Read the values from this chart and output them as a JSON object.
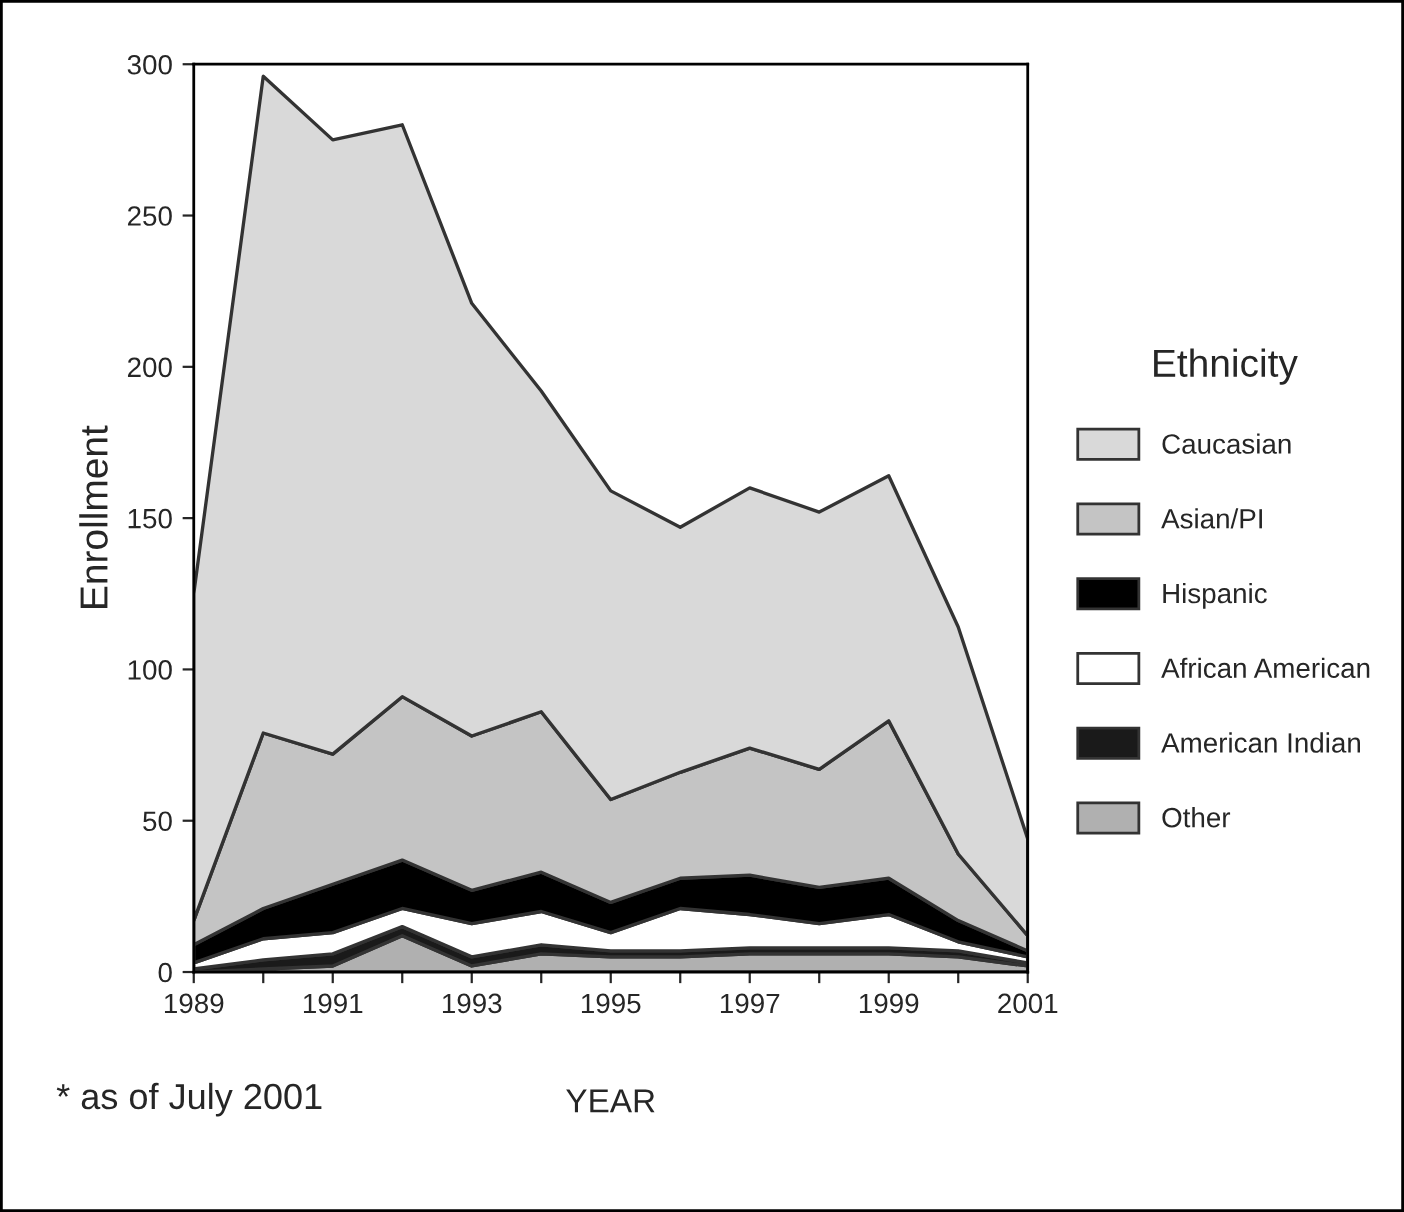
{
  "chart_data": {
    "type": "area",
    "stacked": true,
    "xlabel": "YEAR",
    "ylabel": "Enrollment",
    "legend_title": "Ethnicity",
    "legend": "right",
    "x": [
      1989,
      1990,
      1991,
      1992,
      1993,
      1994,
      1995,
      1996,
      1997,
      1998,
      1999,
      2000,
      2001
    ],
    "series": [
      {
        "name": "Other",
        "color": "#b0b0b0",
        "values": [
          0,
          1,
          2,
          12,
          2,
          6,
          5,
          5,
          6,
          6,
          6,
          5,
          2
        ]
      },
      {
        "name": "American Indian",
        "color": "#1a1a1a",
        "values": [
          1,
          3,
          4,
          3,
          3,
          3,
          2,
          2,
          2,
          2,
          2,
          2,
          1
        ]
      },
      {
        "name": "African American",
        "color": "#ffffff",
        "values": [
          2,
          7,
          7,
          6,
          11,
          11,
          6,
          14,
          11,
          8,
          11,
          3,
          2
        ]
      },
      {
        "name": "Hispanic",
        "color": "#000000",
        "values": [
          6,
          10,
          16,
          16,
          11,
          13,
          10,
          10,
          13,
          12,
          12,
          7,
          2
        ]
      },
      {
        "name": "Asian/PI",
        "color": "#c4c4c4",
        "values": [
          8,
          58,
          43,
          54,
          51,
          53,
          34,
          35,
          42,
          39,
          52,
          22,
          5
        ]
      },
      {
        "name": "Caucasian",
        "color": "#d9d9d9",
        "values": [
          108,
          217,
          203,
          189,
          143,
          106,
          102,
          81,
          86,
          85,
          81,
          75,
          32
        ]
      }
    ],
    "xlim": [
      1989,
      2001
    ],
    "xticks": [
      1989,
      {
        "value": 1990,
        "label": null
      },
      1991,
      {
        "value": 1992,
        "label": null
      },
      1993,
      {
        "value": 1994,
        "label": null
      },
      1995,
      {
        "value": 1996,
        "label": null
      },
      1997,
      {
        "value": 1998,
        "label": null
      },
      1999,
      {
        "value": 2000,
        "label": null
      },
      2001
    ],
    "ylim": [
      0,
      300
    ],
    "yticks": [
      0,
      50,
      100,
      150,
      200,
      250,
      300
    ],
    "grid": false,
    "annotations": [
      "* as of July 2001"
    ]
  }
}
